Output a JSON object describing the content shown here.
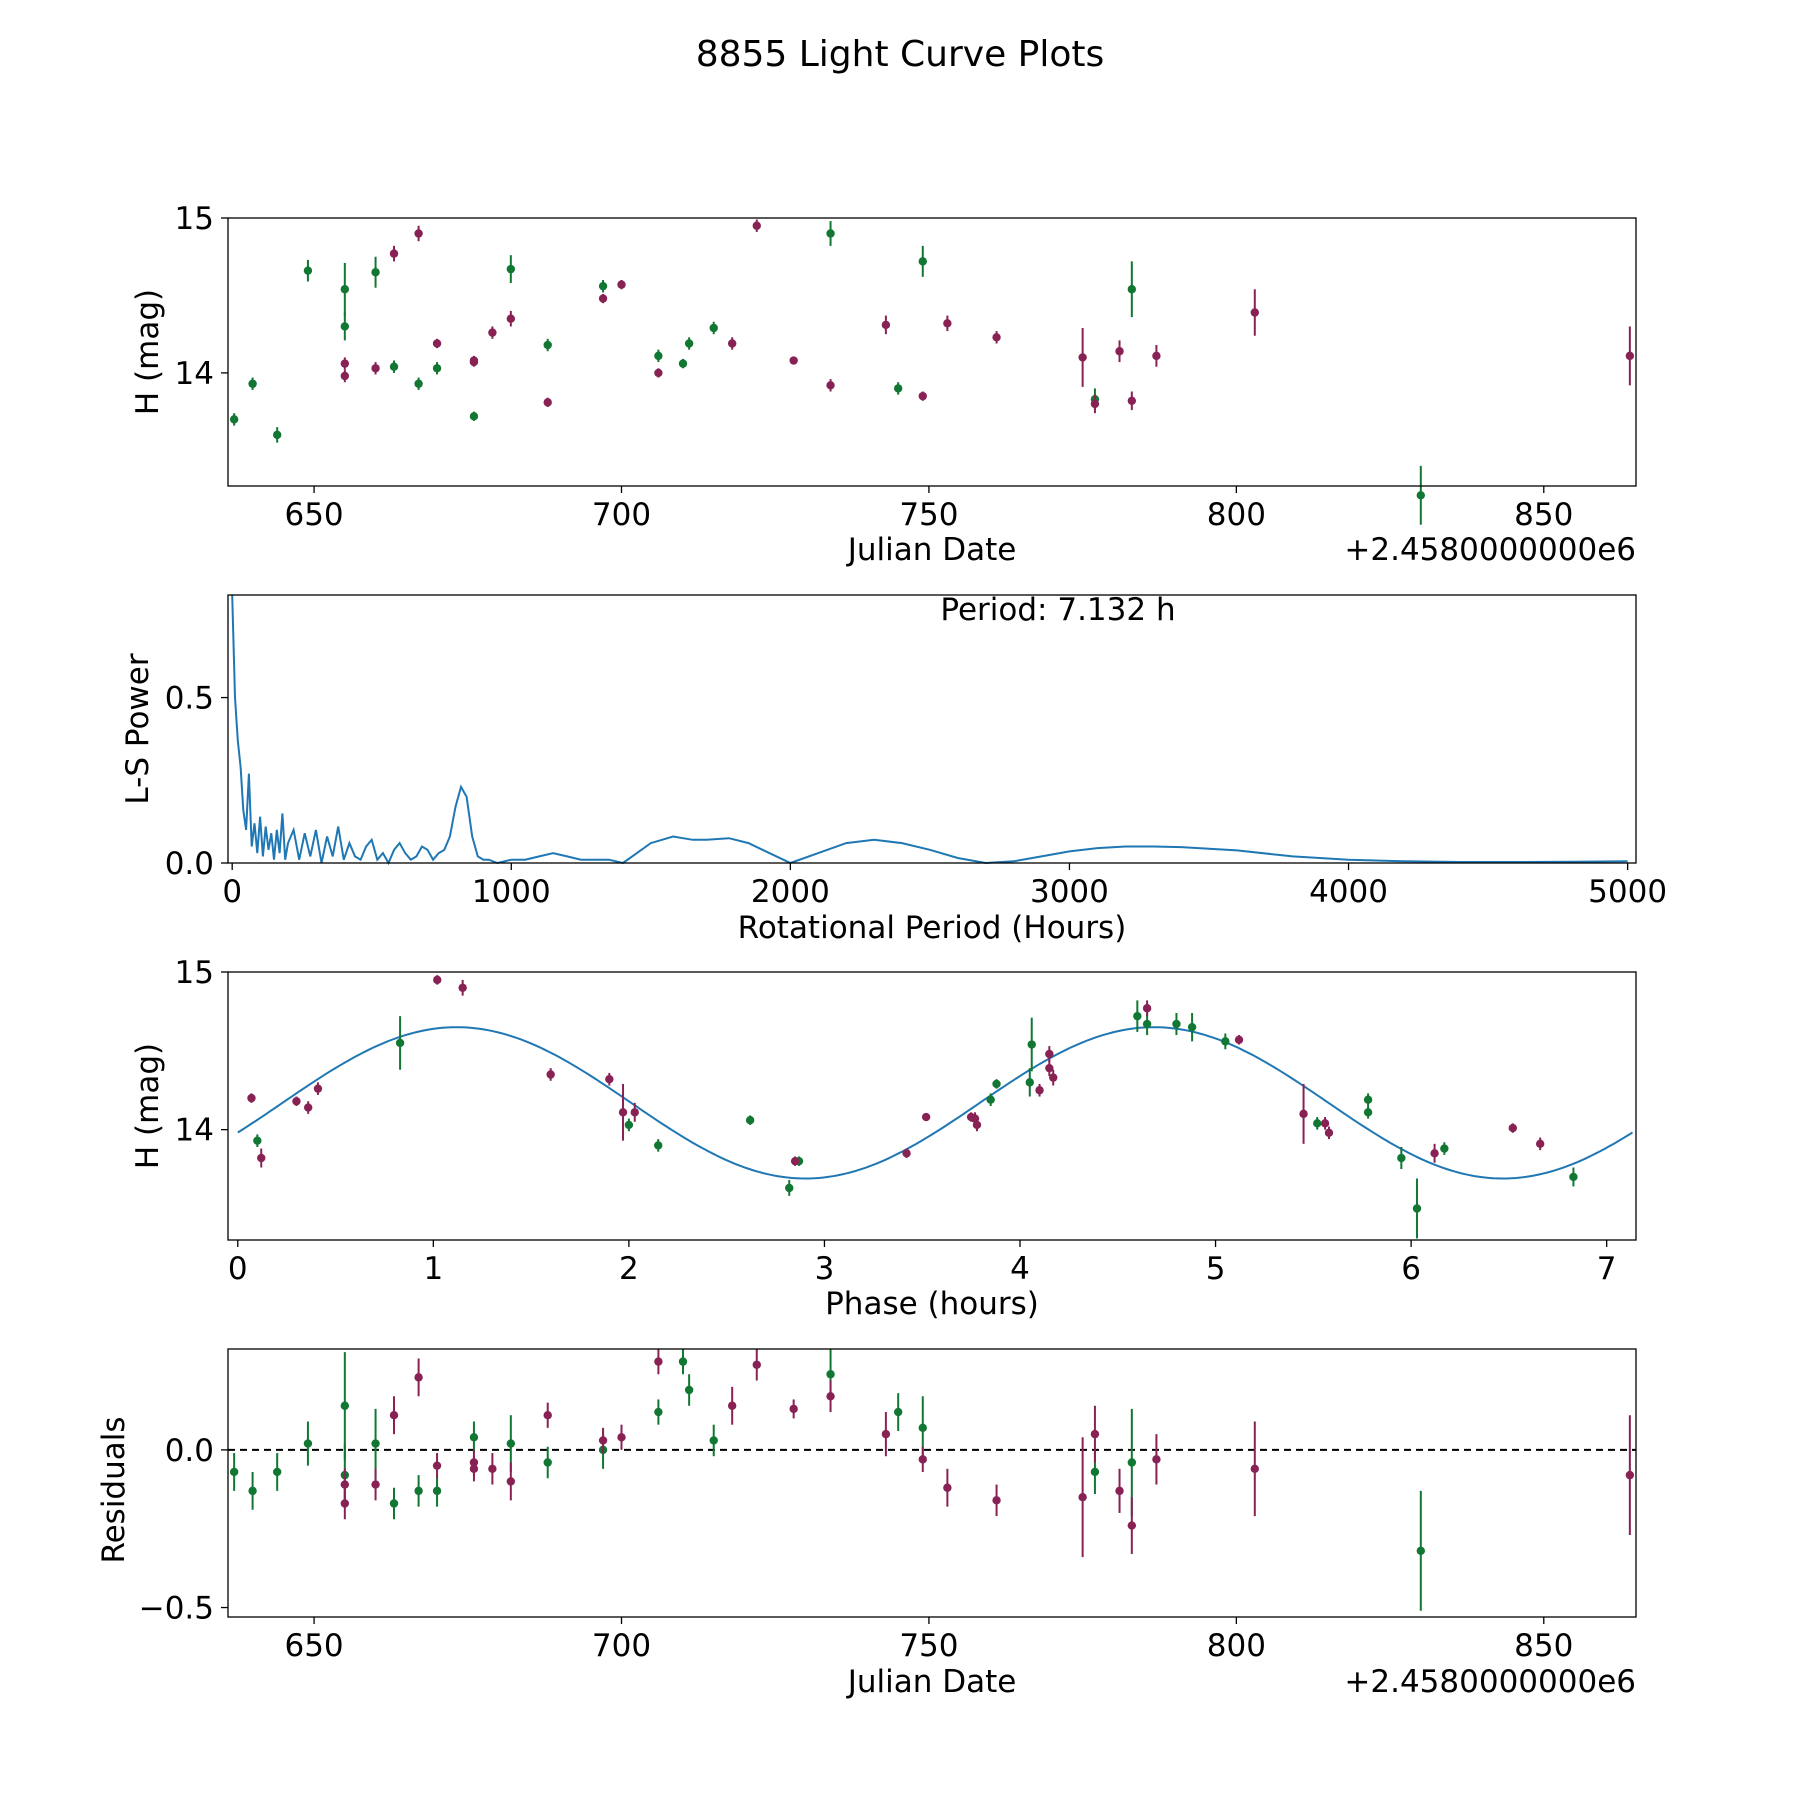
{
  "title": "8855 Light Curve Plots",
  "colors": {
    "green": "#117733",
    "purple": "#882255",
    "line": "#1f77b4",
    "axis": "#000000"
  },
  "chart_data": [
    {
      "type": "scatter",
      "name": "light-curve",
      "xlabel": "Julian Date",
      "ylabel": "H (mag)",
      "offset_label": "+2.4580000000e6",
      "xlim": [
        636,
        865
      ],
      "ylim": [
        13.27,
        15.0
      ],
      "xticks": [
        650,
        700,
        750,
        800,
        850
      ],
      "yticks": [
        14,
        15
      ],
      "series": [
        {
          "name": "green",
          "color": "#117733",
          "points": [
            [
              637,
              13.7,
              0.04
            ],
            [
              640,
              13.93,
              0.04
            ],
            [
              644,
              13.6,
              0.05
            ],
            [
              649,
              14.66,
              0.07
            ],
            [
              655,
              14.54,
              0.17
            ],
            [
              655,
              14.3,
              0.09
            ],
            [
              660,
              14.65,
              0.1
            ],
            [
              663,
              14.04,
              0.04
            ],
            [
              667,
              13.93,
              0.04
            ],
            [
              670,
              14.03,
              0.04
            ],
            [
              676,
              13.72,
              0.03
            ],
            [
              682,
              14.67,
              0.09
            ],
            [
              688,
              14.18,
              0.04
            ],
            [
              697,
              14.56,
              0.04
            ],
            [
              706,
              14.11,
              0.04
            ],
            [
              710,
              14.06,
              0.03
            ],
            [
              711,
              14.19,
              0.04
            ],
            [
              715,
              14.29,
              0.04
            ],
            [
              734,
              14.9,
              0.08
            ],
            [
              745,
              13.9,
              0.04
            ],
            [
              749,
              14.72,
              0.1
            ],
            [
              777,
              13.83,
              0.07
            ],
            [
              783,
              14.54,
              0.18
            ],
            [
              830,
              13.21,
              0.19
            ]
          ]
        },
        {
          "name": "purple",
          "color": "#882255",
          "points": [
            [
              655,
              14.06,
              0.04
            ],
            [
              655,
              13.98,
              0.04
            ],
            [
              660,
              14.03,
              0.04
            ],
            [
              663,
              14.77,
              0.05
            ],
            [
              667,
              14.9,
              0.05
            ],
            [
              670,
              14.19,
              0.03
            ],
            [
              676,
              14.08,
              0.03
            ],
            [
              676,
              14.07,
              0.03
            ],
            [
              679,
              14.26,
              0.04
            ],
            [
              682,
              14.35,
              0.05
            ],
            [
              688,
              13.81,
              0.03
            ],
            [
              697,
              14.48,
              0.03
            ],
            [
              700,
              14.57,
              0.03
            ],
            [
              706,
              14.0,
              0.03
            ],
            [
              718,
              14.19,
              0.04
            ],
            [
              722,
              14.95,
              0.04
            ],
            [
              728,
              14.08,
              0.02
            ],
            [
              734,
              13.92,
              0.04
            ],
            [
              743,
              14.31,
              0.06
            ],
            [
              749,
              13.85,
              0.03
            ],
            [
              753,
              14.32,
              0.05
            ],
            [
              761,
              14.23,
              0.04
            ],
            [
              775,
              14.1,
              0.19
            ],
            [
              777,
              13.8,
              0.06
            ],
            [
              781,
              14.14,
              0.07
            ],
            [
              783,
              13.82,
              0.06
            ],
            [
              787,
              14.11,
              0.07
            ],
            [
              803,
              14.39,
              0.15
            ],
            [
              864,
              14.11,
              0.19
            ]
          ]
        }
      ]
    },
    {
      "type": "line",
      "name": "periodogram",
      "xlabel": "Rotational Period (Hours)",
      "ylabel": "L-S Power",
      "annotation": "Period: 7.132 h",
      "xlim": [
        -15,
        5030
      ],
      "ylim": [
        0,
        0.81
      ],
      "xticks": [
        0,
        1000,
        2000,
        3000,
        4000,
        5000
      ],
      "yticks": [
        0.0,
        0.5
      ],
      "ytick_labels": [
        "0.0",
        "0.5"
      ],
      "x": [
        0,
        10,
        20,
        30,
        40,
        50,
        60,
        70,
        80,
        90,
        100,
        110,
        120,
        130,
        140,
        150,
        160,
        170,
        180,
        190,
        200,
        220,
        240,
        260,
        280,
        300,
        320,
        340,
        360,
        380,
        400,
        420,
        440,
        460,
        480,
        500,
        520,
        540,
        560,
        580,
        600,
        620,
        640,
        660,
        680,
        700,
        720,
        740,
        760,
        780,
        800,
        820,
        840,
        860,
        880,
        900,
        920,
        950,
        1000,
        1050,
        1100,
        1150,
        1200,
        1250,
        1300,
        1350,
        1400,
        1450,
        1500,
        1580,
        1650,
        1700,
        1780,
        1850,
        1900,
        2000,
        2100,
        2200,
        2300,
        2400,
        2500,
        2600,
        2700,
        2800,
        2900,
        3000,
        3100,
        3200,
        3300,
        3400,
        3600,
        3800,
        4000,
        4200,
        4400,
        4600,
        4800,
        5000
      ],
      "y": [
        0.81,
        0.5,
        0.37,
        0.29,
        0.16,
        0.1,
        0.27,
        0.05,
        0.12,
        0.03,
        0.14,
        0.02,
        0.11,
        0.04,
        0.09,
        0.01,
        0.1,
        0.03,
        0.15,
        0.01,
        0.06,
        0.1,
        0.01,
        0.09,
        0.02,
        0.1,
        0.0,
        0.08,
        0.02,
        0.11,
        0.01,
        0.06,
        0.02,
        0.01,
        0.05,
        0.07,
        0.01,
        0.03,
        0.0,
        0.04,
        0.06,
        0.03,
        0.01,
        0.02,
        0.05,
        0.04,
        0.01,
        0.03,
        0.04,
        0.08,
        0.17,
        0.23,
        0.2,
        0.08,
        0.02,
        0.01,
        0.01,
        0.0,
        0.01,
        0.01,
        0.02,
        0.03,
        0.02,
        0.01,
        0.01,
        0.01,
        0.0,
        0.03,
        0.06,
        0.08,
        0.07,
        0.07,
        0.075,
        0.06,
        0.04,
        0.0,
        0.03,
        0.06,
        0.07,
        0.06,
        0.04,
        0.015,
        0.0,
        0.005,
        0.02,
        0.035,
        0.045,
        0.05,
        0.05,
        0.048,
        0.038,
        0.02,
        0.01,
        0.005,
        0.003,
        0.003,
        0.004,
        0.005
      ]
    },
    {
      "type": "scatter",
      "name": "phase-folded",
      "xlabel": "Phase (hours)",
      "ylabel": "H (mag)",
      "xlim": [
        -0.05,
        7.15
      ],
      "ylim": [
        13.3,
        15.0
      ],
      "xticks": [
        0,
        1,
        2,
        3,
        4,
        5,
        6,
        7
      ],
      "yticks": [
        14,
        15
      ],
      "fit": {
        "type": "sine",
        "mean": 14.17,
        "amplitude": 0.48,
        "period": 3.566,
        "peak": 1.12
      },
      "series": [
        {
          "name": "green",
          "color": "#117733",
          "points": [
            [
              0.1,
              13.93,
              0.04
            ],
            [
              0.83,
              14.55,
              0.17
            ],
            [
              2.0,
              14.03,
              0.04
            ],
            [
              2.15,
              13.9,
              0.04
            ],
            [
              2.62,
              14.06,
              0.03
            ],
            [
              2.82,
              13.63,
              0.05
            ],
            [
              2.87,
              13.8,
              0.03
            ],
            [
              3.85,
              14.19,
              0.04
            ],
            [
              3.88,
              14.29,
              0.03
            ],
            [
              4.05,
              14.3,
              0.09
            ],
            [
              4.06,
              14.54,
              0.17
            ],
            [
              4.6,
              14.72,
              0.1
            ],
            [
              4.65,
              14.67,
              0.07
            ],
            [
              4.8,
              14.67,
              0.07
            ],
            [
              4.88,
              14.65,
              0.09
            ],
            [
              5.05,
              14.56,
              0.05
            ],
            [
              5.52,
              14.04,
              0.04
            ],
            [
              5.78,
              14.11,
              0.04
            ],
            [
              5.78,
              14.19,
              0.04
            ],
            [
              5.95,
              13.82,
              0.07
            ],
            [
              6.03,
              13.5,
              0.19
            ],
            [
              6.17,
              13.88,
              0.04
            ],
            [
              6.83,
              13.7,
              0.06
            ]
          ]
        },
        {
          "name": "purple",
          "color": "#882255",
          "points": [
            [
              0.07,
              14.2,
              0.03
            ],
            [
              0.12,
              13.82,
              0.06
            ],
            [
              0.3,
              14.18,
              0.03
            ],
            [
              0.36,
              14.14,
              0.04
            ],
            [
              0.41,
              14.26,
              0.04
            ],
            [
              1.02,
              14.95,
              0.03
            ],
            [
              1.15,
              14.9,
              0.05
            ],
            [
              1.6,
              14.35,
              0.04
            ],
            [
              1.9,
              14.32,
              0.04
            ],
            [
              1.97,
              14.11,
              0.18
            ],
            [
              2.03,
              14.11,
              0.06
            ],
            [
              2.85,
              13.8,
              0.03
            ],
            [
              3.42,
              13.85,
              0.03
            ],
            [
              3.52,
              14.08,
              0.02
            ],
            [
              3.75,
              14.08,
              0.03
            ],
            [
              3.77,
              14.07,
              0.04
            ],
            [
              3.78,
              14.03,
              0.04
            ],
            [
              4.1,
              14.25,
              0.04
            ],
            [
              4.15,
              14.48,
              0.05
            ],
            [
              4.15,
              14.39,
              0.05
            ],
            [
              4.17,
              14.33,
              0.05
            ],
            [
              4.65,
              14.77,
              0.05
            ],
            [
              5.12,
              14.57,
              0.03
            ],
            [
              5.45,
              14.1,
              0.19
            ],
            [
              5.56,
              14.04,
              0.04
            ],
            [
              5.58,
              13.98,
              0.04
            ],
            [
              6.12,
              13.85,
              0.06
            ],
            [
              6.52,
              14.01,
              0.03
            ],
            [
              6.66,
              13.91,
              0.04
            ]
          ]
        }
      ]
    },
    {
      "type": "scatter",
      "name": "residuals",
      "xlabel": "Julian Date",
      "ylabel": "Residuals",
      "offset_label": "+2.4580000000e6",
      "xlim": [
        636,
        865
      ],
      "ylim": [
        -0.53,
        0.32
      ],
      "xticks": [
        650,
        700,
        750,
        800,
        850
      ],
      "yticks": [
        -0.5,
        0.0
      ],
      "ytick_labels": [
        "−0.5",
        "0.0"
      ],
      "reference_line": 0.0,
      "series": [
        {
          "name": "green",
          "color": "#117733",
          "points": [
            [
              637,
              -0.07,
              0.06
            ],
            [
              640,
              -0.13,
              0.06
            ],
            [
              644,
              -0.07,
              0.06
            ],
            [
              649,
              0.02,
              0.07
            ],
            [
              655,
              0.14,
              0.17
            ],
            [
              655,
              -0.08,
              0.1
            ],
            [
              660,
              0.02,
              0.11
            ],
            [
              663,
              -0.17,
              0.05
            ],
            [
              667,
              -0.13,
              0.05
            ],
            [
              670,
              -0.13,
              0.05
            ],
            [
              676,
              0.04,
              0.05
            ],
            [
              682,
              0.02,
              0.09
            ],
            [
              688,
              -0.04,
              0.05
            ],
            [
              697,
              0.0,
              0.06
            ],
            [
              706,
              0.12,
              0.04
            ],
            [
              710,
              0.28,
              0.04
            ],
            [
              711,
              0.19,
              0.05
            ],
            [
              715,
              0.03,
              0.05
            ],
            [
              734,
              0.24,
              0.08
            ],
            [
              745,
              0.12,
              0.06
            ],
            [
              749,
              0.07,
              0.1
            ],
            [
              777,
              -0.07,
              0.07
            ],
            [
              783,
              -0.04,
              0.17
            ],
            [
              830,
              -0.32,
              0.19
            ]
          ]
        },
        {
          "name": "purple",
          "color": "#882255",
          "points": [
            [
              655,
              -0.11,
              0.05
            ],
            [
              655,
              -0.17,
              0.05
            ],
            [
              660,
              -0.11,
              0.05
            ],
            [
              663,
              0.11,
              0.06
            ],
            [
              667,
              0.23,
              0.06
            ],
            [
              670,
              -0.05,
              0.04
            ],
            [
              676,
              -0.04,
              0.04
            ],
            [
              676,
              -0.06,
              0.04
            ],
            [
              679,
              -0.06,
              0.05
            ],
            [
              682,
              -0.1,
              0.06
            ],
            [
              688,
              0.11,
              0.04
            ],
            [
              697,
              0.03,
              0.04
            ],
            [
              700,
              0.04,
              0.04
            ],
            [
              706,
              0.28,
              0.04
            ],
            [
              718,
              0.14,
              0.06
            ],
            [
              722,
              0.27,
              0.05
            ],
            [
              728,
              0.13,
              0.03
            ],
            [
              734,
              0.17,
              0.05
            ],
            [
              743,
              0.05,
              0.07
            ],
            [
              749,
              -0.03,
              0.04
            ],
            [
              753,
              -0.12,
              0.06
            ],
            [
              761,
              -0.16,
              0.05
            ],
            [
              775,
              -0.15,
              0.19
            ],
            [
              777,
              0.05,
              0.09
            ],
            [
              781,
              -0.13,
              0.07
            ],
            [
              783,
              -0.24,
              0.09
            ],
            [
              787,
              -0.03,
              0.08
            ],
            [
              803,
              -0.06,
              0.15
            ],
            [
              864,
              -0.08,
              0.19
            ]
          ]
        }
      ]
    }
  ]
}
